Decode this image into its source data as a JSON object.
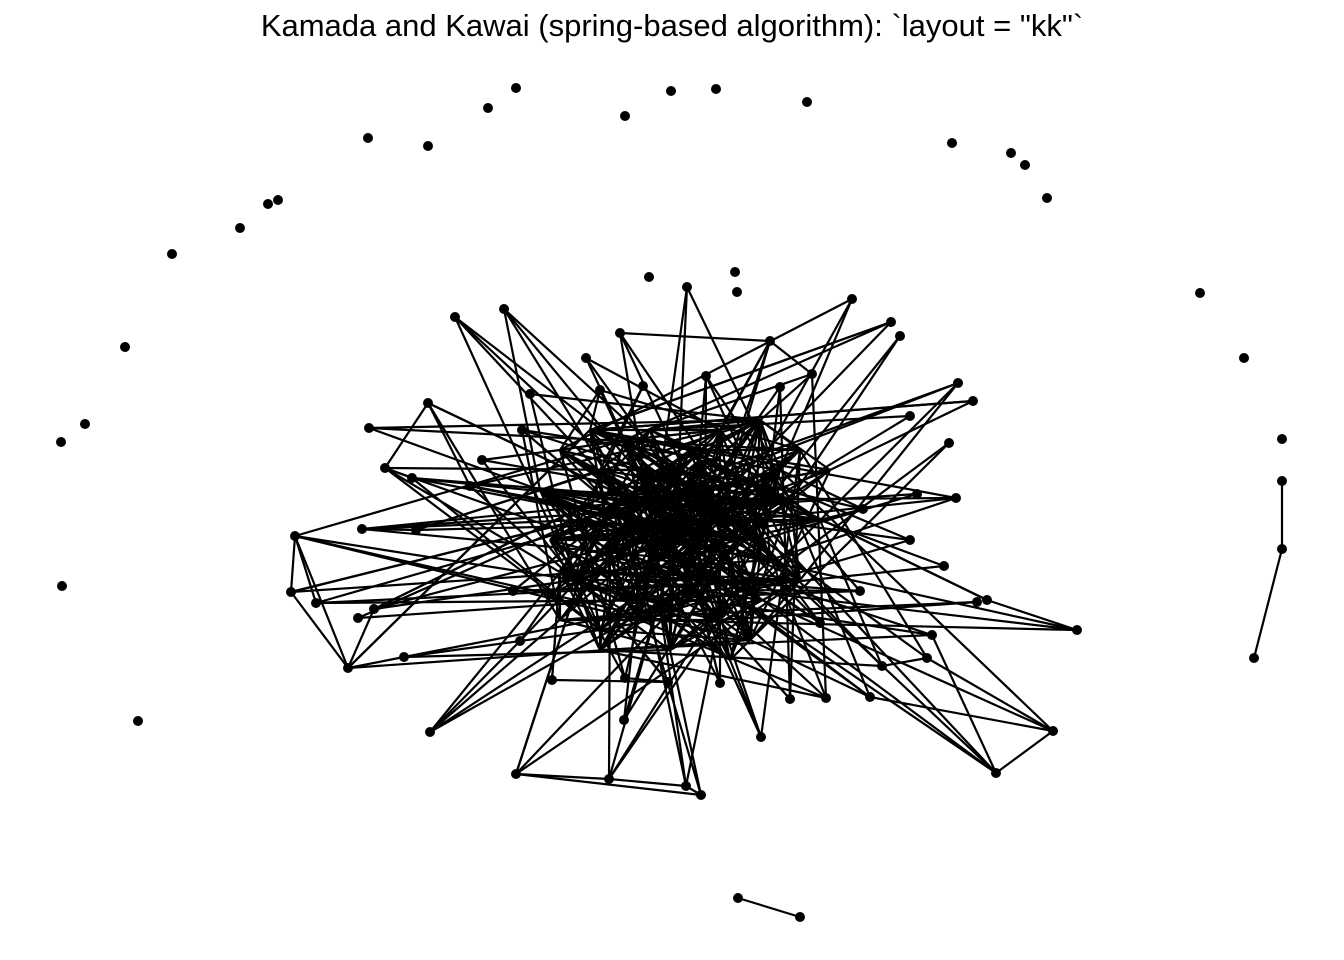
{
  "title": "Kamada and Kawai (spring-based algorithm): `layout = \"kk\"`",
  "colors": {
    "node": "#000000",
    "edge": "#000000",
    "background": "#ffffff"
  },
  "graph": {
    "layout": "kk",
    "node_count": 171,
    "isolated_node_count": 28,
    "components": [
      {
        "kind": "main-cluster"
      },
      {
        "kind": "path",
        "size": 3
      },
      {
        "kind": "pair",
        "size": 2
      }
    ]
  }
}
